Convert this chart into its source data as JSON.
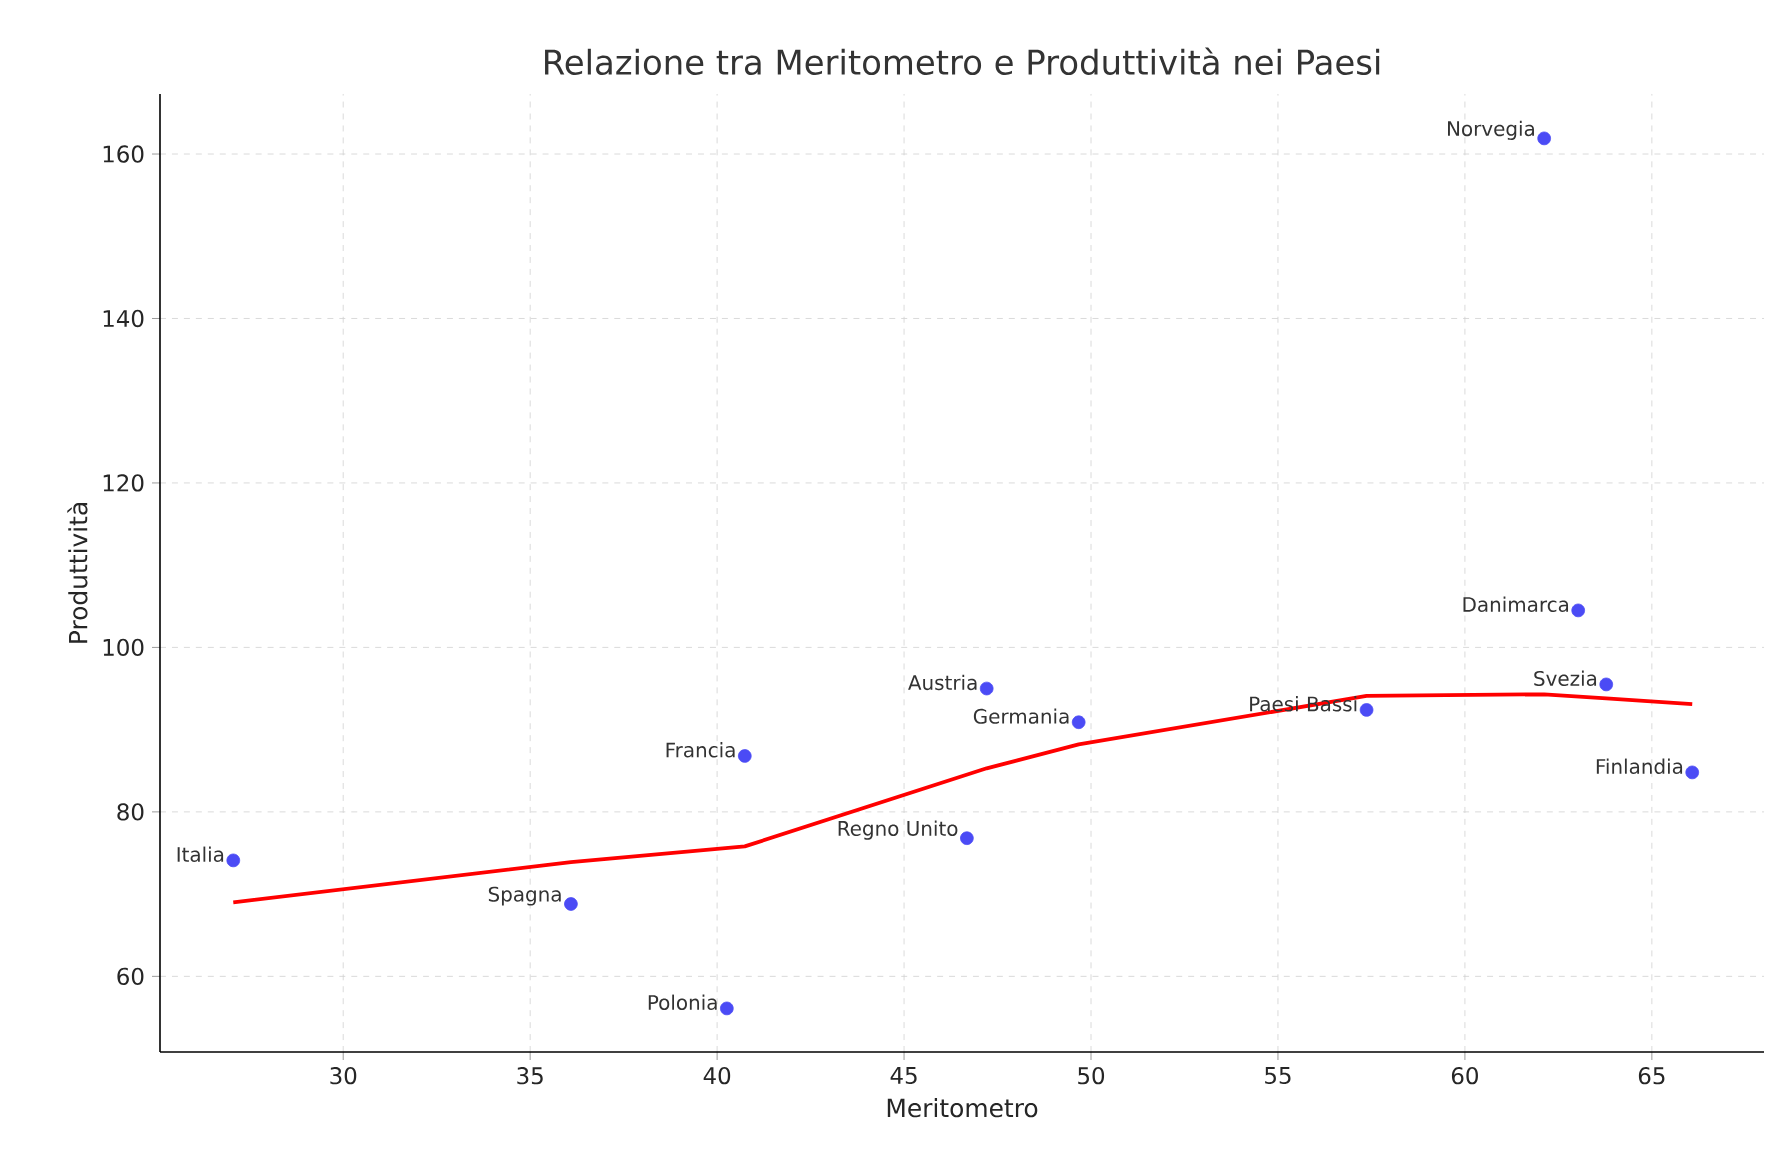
{
  "chart_data": {
    "type": "scatter",
    "title": "Relazione tra Meritometro e Produttività nei Paesi",
    "xlabel": "Meritometro",
    "ylabel": "Produttività",
    "xlim": [
      25.1,
      68.0
    ],
    "ylim": [
      50.8,
      167.3
    ],
    "xticks": [
      30,
      35,
      40,
      45,
      50,
      55,
      60,
      65
    ],
    "yticks": [
      60,
      80,
      100,
      120,
      140,
      160
    ],
    "grid": true,
    "series": [
      {
        "color": "#4b4bf5",
        "marker": "circle",
        "x": [
          27.06,
          36.09,
          40.26,
          40.74,
          46.68,
          47.21,
          49.67,
          57.37,
          62.12,
          63.03,
          63.78,
          66.08
        ],
        "values": [
          74.1,
          68.8,
          56.1,
          86.8,
          76.8,
          95.0,
          90.9,
          92.4,
          161.9,
          104.5,
          95.5,
          84.8
        ]
      },
      {
        "type": "line",
        "color": "#ff0000",
        "line_style": "solid",
        "x": [
          27.06,
          36.09,
          40.74,
          47.21,
          49.67,
          57.37,
          62.12,
          63.78,
          66.08
        ],
        "values": [
          69.0,
          73.9,
          75.8,
          85.3,
          88.2,
          94.1,
          94.3,
          93.8,
          93.1
        ]
      }
    ],
    "annotations": [
      {
        "text": "Italia",
        "x": 27.06,
        "y": 74.1
      },
      {
        "text": "Spagna",
        "x": 36.09,
        "y": 68.8
      },
      {
        "text": "Polonia",
        "x": 40.26,
        "y": 56.1
      },
      {
        "text": "Francia",
        "x": 40.74,
        "y": 86.8
      },
      {
        "text": "Regno Unito",
        "x": 46.68,
        "y": 76.8
      },
      {
        "text": "Austria",
        "x": 47.21,
        "y": 95.0
      },
      {
        "text": "Germania",
        "x": 49.67,
        "y": 90.9
      },
      {
        "text": "Paesi Bassi",
        "x": 57.37,
        "y": 92.4
      },
      {
        "text": "Norvegia",
        "x": 62.12,
        "y": 161.9
      },
      {
        "text": "Danimarca",
        "x": 63.03,
        "y": 104.5
      },
      {
        "text": "Svezia",
        "x": 63.78,
        "y": 95.5
      },
      {
        "text": "Finlandia",
        "x": 66.08,
        "y": 84.8
      }
    ]
  }
}
